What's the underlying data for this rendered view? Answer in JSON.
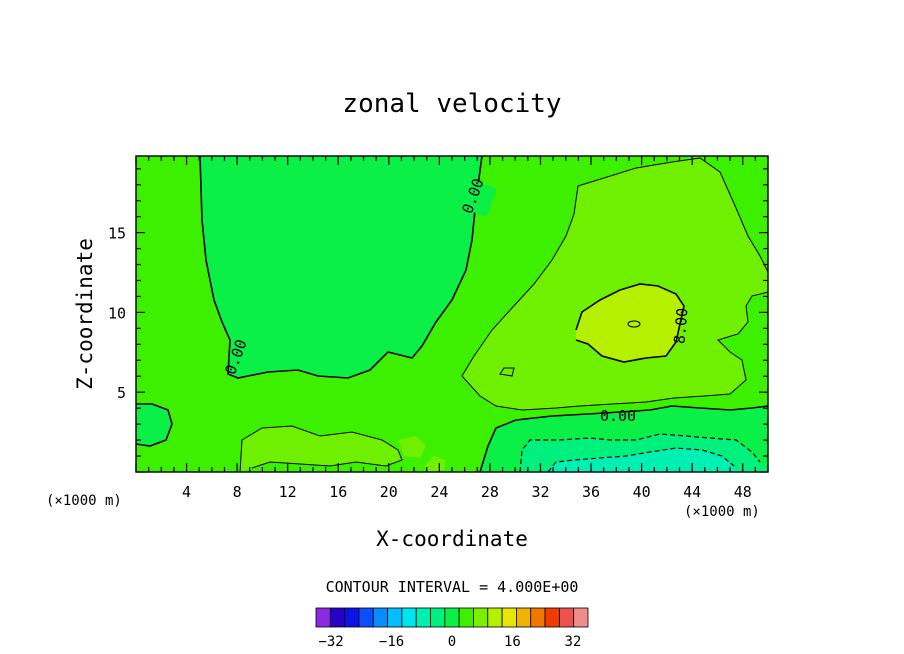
{
  "chart_data": {
    "type": "heatmap",
    "title": "zonal velocity",
    "xlabel": "X-coordinate",
    "ylabel": "Z-coordinate",
    "x_unit_left": "(×1000 m)",
    "x_unit_right": "(×1000 m)",
    "xlim": [
      0,
      50
    ],
    "ylim": [
      0,
      19.8
    ],
    "x_ticks": [
      4,
      8,
      12,
      16,
      20,
      24,
      28,
      32,
      36,
      40,
      44,
      48
    ],
    "y_ticks": [
      5,
      10,
      15
    ],
    "contour_labels": [
      "0.00",
      "0.00",
      "0.00",
      "8.00"
    ],
    "contour_interval_text": "CONTOUR INTERVAL = 4.000E+00",
    "colorbar": {
      "levels": [
        -36,
        -32,
        -28,
        -24,
        -20,
        -16,
        -12,
        -8,
        -4,
        0,
        4,
        8,
        12,
        16,
        20,
        24,
        28,
        32,
        36
      ],
      "tick_values": [
        -32,
        -16,
        0,
        16,
        32
      ],
      "tick_labels": [
        "−32",
        "−16",
        "0",
        "16",
        "32"
      ],
      "colors": [
        "#8a2be2",
        "#2800c8",
        "#0a14e6",
        "#0a50ff",
        "#0a8cff",
        "#00beff",
        "#00e6f0",
        "#00f0b4",
        "#00f07d",
        "#0af046",
        "#3cf000",
        "#78f000",
        "#b4f000",
        "#e6e600",
        "#f0b400",
        "#f07800",
        "#f03c00",
        "#f05050",
        "#f08c8c"
      ]
    },
    "regions": [
      {
        "name": "background",
        "value": 2,
        "color": "#3cf000"
      },
      {
        "name": "negative-core-left",
        "value": -2,
        "color": "#0af046"
      },
      {
        "name": "positive-tongue-right",
        "value": 6,
        "color": "#6ef000"
      },
      {
        "name": "positive-max",
        "value": 10,
        "color": "#b4f000"
      },
      {
        "name": "negative-bottom-right-weak",
        "value": -4,
        "color": "#0af046"
      },
      {
        "name": "negative-bottom-right-mid",
        "value": -8,
        "color": "#00f07d"
      },
      {
        "name": "negative-bottom-right-strong",
        "value": -10,
        "color": "#00f0b4"
      },
      {
        "name": "positive-bottom-patches",
        "value": 6,
        "color": "#6ef000"
      }
    ]
  }
}
